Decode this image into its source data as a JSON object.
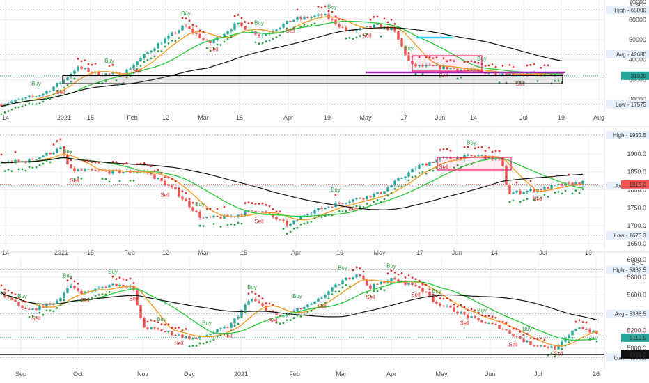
{
  "chart_data": [
    {
      "type": "candlestick",
      "currency": "USD",
      "x_ticks": [
        "14",
        "2021",
        "15",
        "Feb",
        "12",
        "Mar",
        "15",
        "Apr",
        "19",
        "May",
        "17",
        "Jun",
        "14",
        "Jul",
        "19",
        "Aug"
      ],
      "y_ticks": [
        "60000",
        "50000",
        "40000",
        "30000",
        "20000"
      ],
      "ylim": [
        14000,
        70000
      ],
      "top_tick": "70000",
      "high": {
        "label": "High",
        "value": "65000"
      },
      "avg": {
        "label": "Avg",
        "value": "42680"
      },
      "last": {
        "value": "31925"
      },
      "low": {
        "label": "Low",
        "value": "17575"
      },
      "buy_labels": [
        "Buy",
        "Buy",
        "Buy",
        "Buy",
        "Buy",
        "Buy",
        "Buy"
      ],
      "sell_labels": [
        "Sell",
        "Sell",
        "Sell",
        "Sell",
        "Sell",
        "Sell",
        "Sell"
      ],
      "series": [
        {
          "name": "fast MA",
          "color": "#f59a23"
        },
        {
          "name": "mid MA",
          "color": "#2ecc40"
        },
        {
          "name": "slow MA",
          "color": "#111111"
        },
        {
          "name": "parabolic SAR bullish",
          "color": "#2f9e44"
        },
        {
          "name": "parabolic SAR bearish",
          "color": "#e03131"
        }
      ]
    },
    {
      "type": "candlestick",
      "currency": "USD",
      "x_ticks": [
        "14",
        "2021",
        "15",
        "Feb",
        "12",
        "Mar",
        "15",
        "Apr",
        "19",
        "May",
        "17",
        "Jun",
        "14",
        "Jul",
        "19"
      ],
      "y_ticks": [
        "1900.0",
        "1850.0",
        "1800.0",
        "1750.0",
        "1700.0",
        "1650.0"
      ],
      "ylim": [
        1640,
        1960
      ],
      "high": {
        "label": "High",
        "value": "1952.5"
      },
      "avg": {
        "label": "Avg",
        "value": "1811.0"
      },
      "last": {
        "value": "1815.0"
      },
      "low": {
        "label": "Low",
        "value": "1673.3"
      },
      "buy_labels": [
        "Buy",
        "Buy",
        "Buy",
        "Buy"
      ],
      "sell_labels": [
        "Sell",
        "Sell",
        "Sell",
        "Sell",
        "Sell",
        "Sell"
      ]
    },
    {
      "type": "candlestick",
      "currency": "BRL",
      "x_ticks": [
        "Sep",
        "Oct",
        "Nov",
        "Dec",
        "2021",
        "Feb",
        "Mar",
        "Apr",
        "May",
        "Jun",
        "Jul",
        "26"
      ],
      "y_ticks": [
        "5800.0",
        "5600.0",
        "5400.0",
        "5200.0",
        "5000.0",
        "4800.0"
      ],
      "ylim": [
        4860,
        6020
      ],
      "top_tick": "6000.0",
      "high": {
        "label": "High",
        "value": "5882.5"
      },
      "avg": {
        "label": "Avg",
        "value": "5388.5"
      },
      "last": {
        "value": "5119.5"
      },
      "support": {
        "value": "4931.0"
      },
      "low": {
        "label": "Low",
        "value": "4896.5"
      },
      "buy_labels": [
        "Buy",
        "Buy",
        "Buy",
        "Buy",
        "Buy",
        "Buy",
        "Buy",
        "Buy",
        "Buy",
        "Buy",
        "Buy",
        "Buy"
      ],
      "sell_labels": [
        "Sell",
        "Sell",
        "Sell",
        "Sell",
        "Sell",
        "Sell",
        "Sell",
        "Sell",
        "Sell",
        "Sell",
        "Sell",
        "Sell"
      ]
    }
  ]
}
